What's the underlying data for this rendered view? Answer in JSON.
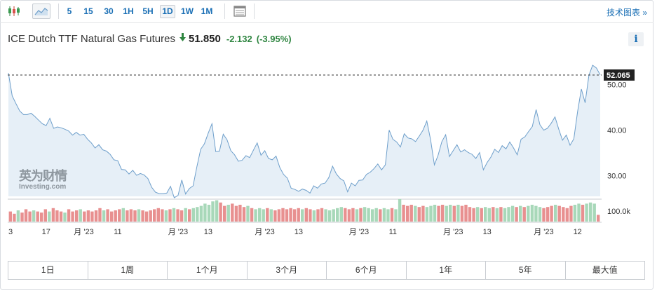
{
  "toolbar": {
    "timeframes": [
      "5",
      "15",
      "30",
      "1H",
      "5H",
      "1D",
      "1W",
      "1M"
    ],
    "active_timeframe": "1D",
    "tech_chart_label": "技术图表 »"
  },
  "instrument": {
    "name": "ICE Dutch TTF Natural Gas Futures",
    "price": "51.850",
    "change": "-2.132",
    "change_pct": "(-3.95%)",
    "info_label": "i"
  },
  "watermark": {
    "cn": "英为财情",
    "en": "Investing.com"
  },
  "colors": {
    "line": "#6e9fcb",
    "area": "#e6eff7",
    "up_volume": "#a8d8b9",
    "down_volume": "#e89090",
    "change": "#2e8540",
    "link": "#1a6fb5"
  },
  "chart_data": {
    "type": "area",
    "current_value": 52.065,
    "current_label": "52.065",
    "ylim": [
      25.5,
      55.6
    ],
    "y_ticks": [
      30,
      40,
      50
    ],
    "y_tick_labels": [
      "30.00",
      "40.00",
      "50.00"
    ],
    "x_tick_labels": [
      {
        "text": "3",
        "index": 0
      },
      {
        "text": "17",
        "index": 10
      },
      {
        "text": "月 '23",
        "index": 20
      },
      {
        "text": "11",
        "index": 29
      },
      {
        "text": "月 '23",
        "index": 45
      },
      {
        "text": "13",
        "index": 53
      },
      {
        "text": "月 '23",
        "index": 68
      },
      {
        "text": "13",
        "index": 77
      },
      {
        "text": "月 '23",
        "index": 93
      },
      {
        "text": "11",
        "index": 102
      },
      {
        "text": "月 '23",
        "index": 118
      },
      {
        "text": "13",
        "index": 127
      },
      {
        "text": "月 '23",
        "index": 142
      },
      {
        "text": "12",
        "index": 151
      }
    ],
    "values": [
      52.5,
      47.5,
      45.8,
      44.2,
      43.4,
      43.4,
      43.7,
      43.0,
      42.2,
      41.4,
      41.0,
      42.6,
      40.4,
      40.7,
      40.5,
      40.2,
      39.8,
      38.9,
      39.5,
      38.9,
      39.1,
      38.0,
      37.2,
      36.1,
      36.8,
      35.7,
      35.4,
      34.7,
      33.5,
      33.3,
      31.4,
      31.3,
      30.4,
      31.2,
      30.1,
      30.5,
      30.2,
      29.4,
      27.5,
      26.4,
      26.1,
      26.1,
      26.2,
      27.7,
      25.2,
      25.7,
      29.1,
      26.0,
      27.2,
      27.8,
      32.0,
      35.8,
      37.0,
      39.3,
      41.4,
      35.3,
      35.4,
      39.1,
      37.9,
      35.5,
      34.6,
      33.2,
      33.4,
      34.4,
      34.0,
      35.6,
      37.2,
      34.5,
      35.5,
      33.8,
      33.5,
      34.3,
      31.8,
      30.3,
      29.5,
      27.3,
      27.0,
      26.6,
      27.1,
      26.8,
      26.2,
      27.8,
      27.3,
      28.2,
      28.4,
      29.6,
      32.1,
      30.4,
      29.4,
      28.9,
      26.5,
      28.4,
      27.8,
      29.0,
      29.1,
      30.3,
      30.8,
      31.6,
      32.6,
      31.3,
      32.4,
      40.0,
      38.0,
      37.4,
      36.3,
      39.2,
      38.3,
      38.1,
      37.5,
      38.7,
      40.0,
      42.0,
      37.9,
      32.4,
      34.5,
      37.5,
      39.0,
      34.2,
      35.5,
      36.8,
      35.2,
      35.7,
      35.1,
      34.7,
      33.8,
      35.1,
      31.3,
      32.9,
      34.1,
      35.8,
      35.1,
      36.6,
      35.9,
      37.4,
      36.1,
      34.6,
      38.0,
      38.5,
      39.7,
      40.8,
      44.5,
      41.2,
      40.0,
      40.4,
      41.5,
      42.9,
      40.2,
      37.8,
      38.9,
      36.7,
      38.1,
      44.0,
      49.0,
      46.0,
      52.0,
      54.2,
      53.6,
      52.1
    ],
    "volume_label": "100.0k",
    "volume": [
      {
        "v": 0.45,
        "up": false
      },
      {
        "v": 0.35,
        "up": false
      },
      {
        "v": 0.5,
        "up": true
      },
      {
        "v": 0.4,
        "up": false
      },
      {
        "v": 0.55,
        "up": false
      },
      {
        "v": 0.45,
        "up": false
      },
      {
        "v": 0.5,
        "up": true
      },
      {
        "v": 0.45,
        "up": false
      },
      {
        "v": 0.4,
        "up": false
      },
      {
        "v": 0.55,
        "up": false
      },
      {
        "v": 0.45,
        "up": true
      },
      {
        "v": 0.6,
        "up": false
      },
      {
        "v": 0.5,
        "up": false
      },
      {
        "v": 0.45,
        "up": false
      },
      {
        "v": 0.4,
        "up": true
      },
      {
        "v": 0.55,
        "up": false
      },
      {
        "v": 0.45,
        "up": false
      },
      {
        "v": 0.5,
        "up": false
      },
      {
        "v": 0.55,
        "up": true
      },
      {
        "v": 0.45,
        "up": false
      },
      {
        "v": 0.5,
        "up": false
      },
      {
        "v": 0.45,
        "up": false
      },
      {
        "v": 0.5,
        "up": false
      },
      {
        "v": 0.6,
        "up": false
      },
      {
        "v": 0.5,
        "up": true
      },
      {
        "v": 0.55,
        "up": false
      },
      {
        "v": 0.45,
        "up": false
      },
      {
        "v": 0.5,
        "up": false
      },
      {
        "v": 0.55,
        "up": false
      },
      {
        "v": 0.6,
        "up": true
      },
      {
        "v": 0.5,
        "up": false
      },
      {
        "v": 0.55,
        "up": false
      },
      {
        "v": 0.5,
        "up": false
      },
      {
        "v": 0.55,
        "up": true
      },
      {
        "v": 0.5,
        "up": false
      },
      {
        "v": 0.45,
        "up": false
      },
      {
        "v": 0.5,
        "up": false
      },
      {
        "v": 0.55,
        "up": false
      },
      {
        "v": 0.6,
        "up": false
      },
      {
        "v": 0.55,
        "up": false
      },
      {
        "v": 0.5,
        "up": true
      },
      {
        "v": 0.55,
        "up": false
      },
      {
        "v": 0.6,
        "up": true
      },
      {
        "v": 0.55,
        "up": false
      },
      {
        "v": 0.5,
        "up": false
      },
      {
        "v": 0.6,
        "up": true
      },
      {
        "v": 0.55,
        "up": false
      },
      {
        "v": 0.6,
        "up": true
      },
      {
        "v": 0.65,
        "up": true
      },
      {
        "v": 0.7,
        "up": true
      },
      {
        "v": 0.8,
        "up": true
      },
      {
        "v": 0.75,
        "up": true
      },
      {
        "v": 0.9,
        "up": true
      },
      {
        "v": 0.95,
        "up": true
      },
      {
        "v": 0.85,
        "up": false
      },
      {
        "v": 0.7,
        "up": false
      },
      {
        "v": 0.75,
        "up": true
      },
      {
        "v": 0.8,
        "up": false
      },
      {
        "v": 0.7,
        "up": false
      },
      {
        "v": 0.75,
        "up": false
      },
      {
        "v": 0.65,
        "up": false
      },
      {
        "v": 0.7,
        "up": true
      },
      {
        "v": 0.6,
        "up": false
      },
      {
        "v": 0.55,
        "up": true
      },
      {
        "v": 0.6,
        "up": true
      },
      {
        "v": 0.55,
        "up": true
      },
      {
        "v": 0.6,
        "up": false
      },
      {
        "v": 0.55,
        "up": true
      },
      {
        "v": 0.5,
        "up": false
      },
      {
        "v": 0.55,
        "up": false
      },
      {
        "v": 0.6,
        "up": false
      },
      {
        "v": 0.55,
        "up": false
      },
      {
        "v": 0.6,
        "up": false
      },
      {
        "v": 0.55,
        "up": false
      },
      {
        "v": 0.6,
        "up": false
      },
      {
        "v": 0.55,
        "up": true
      },
      {
        "v": 0.6,
        "up": false
      },
      {
        "v": 0.55,
        "up": false
      },
      {
        "v": 0.5,
        "up": true
      },
      {
        "v": 0.55,
        "up": false
      },
      {
        "v": 0.6,
        "up": false
      },
      {
        "v": 0.55,
        "up": true
      },
      {
        "v": 0.5,
        "up": true
      },
      {
        "v": 0.55,
        "up": true
      },
      {
        "v": 0.6,
        "up": true
      },
      {
        "v": 0.65,
        "up": true
      },
      {
        "v": 0.6,
        "up": false
      },
      {
        "v": 0.55,
        "up": false
      },
      {
        "v": 0.6,
        "up": false
      },
      {
        "v": 0.55,
        "up": true
      },
      {
        "v": 0.6,
        "up": false
      },
      {
        "v": 0.65,
        "up": true
      },
      {
        "v": 0.6,
        "up": true
      },
      {
        "v": 0.55,
        "up": true
      },
      {
        "v": 0.6,
        "up": true
      },
      {
        "v": 0.55,
        "up": false
      },
      {
        "v": 0.6,
        "up": true
      },
      {
        "v": 0.55,
        "up": true
      },
      {
        "v": 0.6,
        "up": false
      },
      {
        "v": 0.55,
        "up": true
      },
      {
        "v": 1.0,
        "up": true
      },
      {
        "v": 0.75,
        "up": false
      },
      {
        "v": 0.7,
        "up": false
      },
      {
        "v": 0.75,
        "up": false
      },
      {
        "v": 0.7,
        "up": true
      },
      {
        "v": 0.65,
        "up": false
      },
      {
        "v": 0.7,
        "up": false
      },
      {
        "v": 0.65,
        "up": true
      },
      {
        "v": 0.7,
        "up": true
      },
      {
        "v": 0.75,
        "up": true
      },
      {
        "v": 0.7,
        "up": false
      },
      {
        "v": 0.75,
        "up": false
      },
      {
        "v": 0.7,
        "up": true
      },
      {
        "v": 0.75,
        "up": true
      },
      {
        "v": 0.7,
        "up": false
      },
      {
        "v": 0.75,
        "up": true
      },
      {
        "v": 0.7,
        "up": false
      },
      {
        "v": 0.75,
        "up": false
      },
      {
        "v": 0.65,
        "up": false
      },
      {
        "v": 0.6,
        "up": false
      },
      {
        "v": 0.65,
        "up": true
      },
      {
        "v": 0.6,
        "up": false
      },
      {
        "v": 0.65,
        "up": true
      },
      {
        "v": 0.6,
        "up": true
      },
      {
        "v": 0.65,
        "up": false
      },
      {
        "v": 0.6,
        "up": true
      },
      {
        "v": 0.65,
        "up": false
      },
      {
        "v": 0.6,
        "up": true
      },
      {
        "v": 0.65,
        "up": true
      },
      {
        "v": 0.7,
        "up": true
      },
      {
        "v": 0.65,
        "up": false
      },
      {
        "v": 0.7,
        "up": true
      },
      {
        "v": 0.65,
        "up": false
      },
      {
        "v": 0.7,
        "up": true
      },
      {
        "v": 0.75,
        "up": true
      },
      {
        "v": 0.7,
        "up": true
      },
      {
        "v": 0.65,
        "up": true
      },
      {
        "v": 0.6,
        "up": false
      },
      {
        "v": 0.65,
        "up": false
      },
      {
        "v": 0.7,
        "up": false
      },
      {
        "v": 0.75,
        "up": true
      },
      {
        "v": 0.7,
        "up": false
      },
      {
        "v": 0.65,
        "up": false
      },
      {
        "v": 0.6,
        "up": false
      },
      {
        "v": 0.7,
        "up": false
      },
      {
        "v": 0.75,
        "up": true
      },
      {
        "v": 0.8,
        "up": true
      },
      {
        "v": 0.75,
        "up": false
      },
      {
        "v": 0.8,
        "up": true
      },
      {
        "v": 0.85,
        "up": true
      },
      {
        "v": 0.8,
        "up": true
      },
      {
        "v": 0.3,
        "up": false
      }
    ]
  },
  "periods": [
    "1日",
    "1周",
    "1个月",
    "3个月",
    "6个月",
    "1年",
    "5年",
    "最大值"
  ]
}
